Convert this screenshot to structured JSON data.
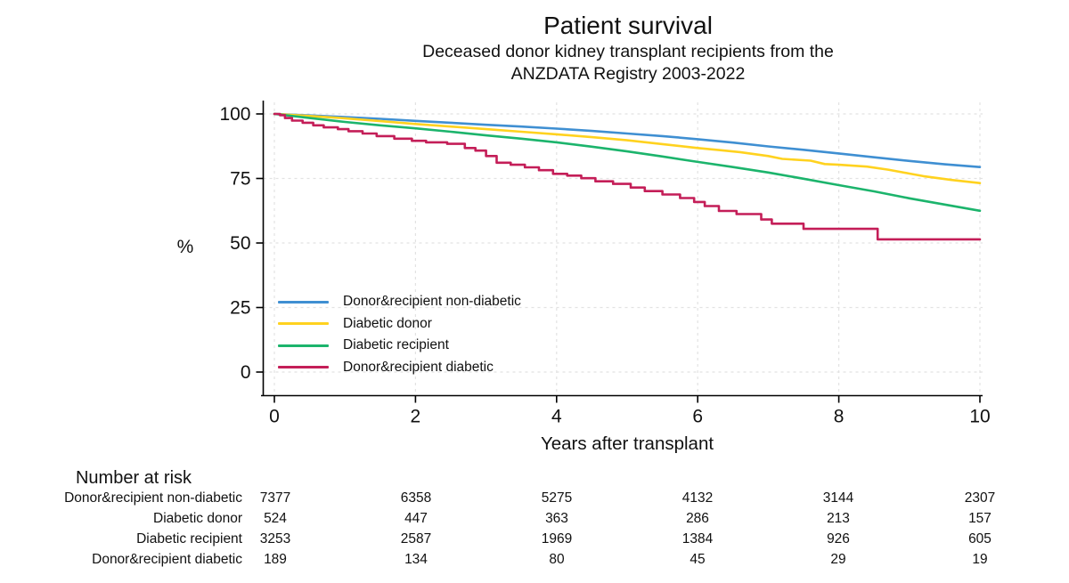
{
  "title": "Patient survival",
  "subtitle_line1": "Deceased donor kidney transplant recipients from the",
  "subtitle_line2": "ANZDATA Registry 2003-2022",
  "chart_data": {
    "type": "line",
    "subtype": "kaplan-meier-survival",
    "title": "Patient survival",
    "xlabel": "Years after transplant",
    "ylabel": "%",
    "xlim": [
      0,
      10
    ],
    "ylim": [
      0,
      100
    ],
    "x_ticks": [
      0,
      2,
      4,
      6,
      8,
      10
    ],
    "y_ticks": [
      0,
      25,
      50,
      75,
      100
    ],
    "grid": "both, light dashed",
    "legend_position": "inside lower-left",
    "colors": {
      "axis": "#000000",
      "grid": "#e2e2e2",
      "blue": "#3f8fd2",
      "yellow": "#ffd21f",
      "green": "#1cb46c",
      "crimson": "#c41e58"
    },
    "series": [
      {
        "name": "Donor&recipient non-diabetic",
        "color": "#3f8fd2",
        "step": false,
        "points": [
          [
            0,
            100
          ],
          [
            0.5,
            99.4
          ],
          [
            1,
            98.8
          ],
          [
            1.5,
            98.1
          ],
          [
            2,
            97.3
          ],
          [
            2.5,
            96.6
          ],
          [
            3,
            95.8
          ],
          [
            3.5,
            95.1
          ],
          [
            4,
            94.3
          ],
          [
            4.5,
            93.4
          ],
          [
            5,
            92.4
          ],
          [
            5.5,
            91.4
          ],
          [
            6,
            90.2
          ],
          [
            6.5,
            88.9
          ],
          [
            7,
            87.4
          ],
          [
            7.5,
            86.1
          ],
          [
            8,
            84.7
          ],
          [
            8.5,
            83.2
          ],
          [
            9,
            81.8
          ],
          [
            9.5,
            80.5
          ],
          [
            10,
            79.4
          ]
        ]
      },
      {
        "name": "Diabetic donor",
        "color": "#ffd21f",
        "step": false,
        "points": [
          [
            0,
            100
          ],
          [
            0.5,
            99.2
          ],
          [
            1,
            98.3
          ],
          [
            1.5,
            97.2
          ],
          [
            2,
            96.1
          ],
          [
            2.5,
            95.1
          ],
          [
            3,
            94.1
          ],
          [
            3.5,
            93.1
          ],
          [
            4,
            92.1
          ],
          [
            4.5,
            91.0
          ],
          [
            5,
            89.8
          ],
          [
            5.5,
            88.3
          ],
          [
            6,
            86.8
          ],
          [
            6.3,
            86.0
          ],
          [
            6.6,
            85.2
          ],
          [
            7,
            83.7
          ],
          [
            7.2,
            82.6
          ],
          [
            7.6,
            81.9
          ],
          [
            7.8,
            80.6
          ],
          [
            8,
            80.3
          ],
          [
            8.4,
            79.6
          ],
          [
            8.7,
            78.4
          ],
          [
            9,
            76.9
          ],
          [
            9.2,
            75.9
          ],
          [
            9.6,
            74.4
          ],
          [
            10,
            73.2
          ]
        ]
      },
      {
        "name": "Diabetic recipient",
        "color": "#1cb46c",
        "step": false,
        "points": [
          [
            0,
            100
          ],
          [
            0.5,
            98.4
          ],
          [
            1,
            96.9
          ],
          [
            1.5,
            95.6
          ],
          [
            2,
            94.4
          ],
          [
            2.5,
            93.1
          ],
          [
            3,
            91.7
          ],
          [
            3.5,
            90.4
          ],
          [
            4,
            89.0
          ],
          [
            4.5,
            87.3
          ],
          [
            5,
            85.5
          ],
          [
            5.5,
            83.5
          ],
          [
            6,
            81.4
          ],
          [
            6.5,
            79.4
          ],
          [
            7,
            77.3
          ],
          [
            7.5,
            74.9
          ],
          [
            8,
            72.4
          ],
          [
            8.5,
            70.0
          ],
          [
            9,
            67.3
          ],
          [
            9.5,
            64.9
          ],
          [
            10,
            62.5
          ]
        ]
      },
      {
        "name": "Donor&recipient diabetic",
        "color": "#c41e58",
        "step": true,
        "points": [
          [
            0,
            100
          ],
          [
            0.08,
            99.5
          ],
          [
            0.15,
            98.4
          ],
          [
            0.25,
            97.4
          ],
          [
            0.4,
            96.6
          ],
          [
            0.55,
            95.6
          ],
          [
            0.7,
            94.8
          ],
          [
            0.9,
            94.1
          ],
          [
            1.05,
            93.3
          ],
          [
            1.25,
            92.4
          ],
          [
            1.45,
            91.4
          ],
          [
            1.7,
            90.4
          ],
          [
            1.95,
            89.6
          ],
          [
            2.15,
            89.0
          ],
          [
            2.45,
            88.4
          ],
          [
            2.7,
            86.8
          ],
          [
            2.85,
            85.8
          ],
          [
            3.0,
            83.7
          ],
          [
            3.15,
            81.1
          ],
          [
            3.35,
            80.3
          ],
          [
            3.55,
            79.3
          ],
          [
            3.75,
            78.2
          ],
          [
            3.95,
            76.8
          ],
          [
            4.15,
            76.1
          ],
          [
            4.35,
            75.1
          ],
          [
            4.55,
            73.9
          ],
          [
            4.8,
            72.9
          ],
          [
            5.05,
            71.5
          ],
          [
            5.25,
            70.1
          ],
          [
            5.5,
            68.8
          ],
          [
            5.75,
            67.4
          ],
          [
            5.95,
            65.9
          ],
          [
            6.1,
            64.3
          ],
          [
            6.3,
            62.4
          ],
          [
            6.55,
            61.2
          ],
          [
            6.9,
            59.1
          ],
          [
            7.05,
            57.5
          ],
          [
            7.5,
            55.5
          ],
          [
            8.55,
            51.4
          ],
          [
            10,
            51.4
          ]
        ]
      }
    ],
    "risk_table": {
      "title": "Number at risk",
      "time_points": [
        0,
        2,
        4,
        6,
        8,
        10
      ],
      "rows": [
        {
          "label": "Donor&recipient non-diabetic",
          "values": [
            "7377",
            "6358",
            "5275",
            "4132",
            "3144",
            "2307"
          ]
        },
        {
          "label": "Diabetic donor",
          "values": [
            "524",
            "447",
            "363",
            "286",
            "213",
            "157"
          ]
        },
        {
          "label": "Diabetic recipient",
          "values": [
            "3253",
            "2587",
            "1969",
            "1384",
            "926",
            "605"
          ]
        },
        {
          "label": "Donor&recipient diabetic",
          "values": [
            "189",
            "134",
            "80",
            "45",
            "29",
            "19"
          ]
        }
      ]
    }
  }
}
